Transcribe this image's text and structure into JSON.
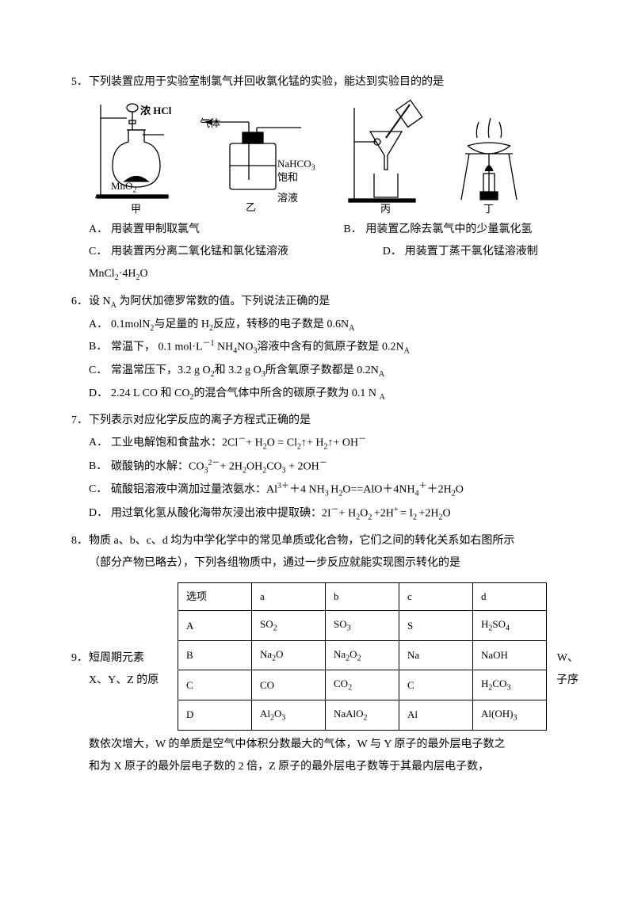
{
  "q5": {
    "num": "5．",
    "stem": "下列装置应用于实验室制氯气并回收氯化锰的实验，能达到实验目的的是",
    "labels": {
      "j1": "浓 HCl",
      "j2": "MnO",
      "j2s": "2",
      "j3": "气体",
      "j4": "NaHCO",
      "j4s": "3",
      "j5": "饱和溶液",
      "c1": "甲",
      "c2": "乙",
      "c3": "丙",
      "c4": "丁"
    },
    "A": {
      "l": "A．",
      "t": "用装置甲制取氯气"
    },
    "B": {
      "l": "B．",
      "t": "用装置乙除去氯气中的少量氯化氢"
    },
    "C": {
      "l": "C．",
      "t": "用装置丙分离二氧化锰和氯化锰溶液"
    },
    "D": {
      "l": "D．",
      "t": "用装置丁蒸干氯化锰溶液制"
    },
    "tail": "MnCl",
    "tail_s": "2",
    "tail2": "·4H",
    "tail2_s": "2",
    "tail3": "O"
  },
  "q6": {
    "num": "6．",
    "stem_a": "设 N",
    "stem_b": " 为阿伏加德罗常数的值。下列说法正确的是",
    "sub": "A",
    "A": {
      "l": "A．",
      "t1": "0.1molN",
      "s1": "2",
      "t2": "与足量的 H",
      "s2": "2",
      "t3": "反应，转移的电子数是 0.6N",
      "s3": "A"
    },
    "B": {
      "l": "B．",
      "t1": "常温下，  0.1 mol·L",
      "sup": "－1",
      "t2": " NH",
      "s2": "4",
      "t3": "NO",
      "s3": "3",
      "t4": "溶液中含有的氮原子数是 0.2N",
      "s4": "A"
    },
    "C": {
      "l": "C．",
      "t1": "常温常压下，3.2 g O",
      "s1": "2",
      "t2": "和 3.2 g O",
      "s2": "3",
      "t3": "所含氧原子数都是 0.2N",
      "s3": "A"
    },
    "D": {
      "l": "D．",
      "t1": "2.24 L CO 和 CO",
      "s1": "2",
      "t2": "的混合气体中所含的碳原子数为 0.1 N ",
      "s2": "A"
    }
  },
  "q7": {
    "num": "7．",
    "stem": "下列表示对应化学反应的离子方程式正确的是",
    "A": {
      "l": "A．",
      "t1": "工业电解饱和食盐水：2Cl",
      "sup1": "－",
      "t2": "+ H",
      "s2": "2",
      "t3": "O = Cl",
      "s3": "2",
      "t4": "↑+ H",
      "s4": "2",
      "t5": "↑+ OH",
      "sup5": "－"
    },
    "B": {
      "l": "B．",
      "t1": "碳酸钠的水解：CO",
      "s1": "3",
      "sup1": "2－",
      "t2": "+ 2H",
      "s2": "2",
      "t3": "OH",
      "s3": "2",
      "t4": "CO",
      "s4": "3",
      "t5": " + 2OH",
      "sup5": "－"
    },
    "C": {
      "l": "C．",
      "t1": "硫酸铝溶液中滴加过量浓氨水：Al",
      "sup1": "3＋",
      "t2": "＋4 NH",
      "s2": "3 ",
      "t3": "H",
      "s3": "2",
      "t4": "O==AlO＋4NH",
      "s4": "4",
      "sup4": "＋",
      "t5": "＋2H",
      "s5": "2",
      "t6": "O"
    },
    "D": {
      "l": "D．",
      "t1": "用过氧化氢从酸化海带灰浸出液中提取碘：2I",
      "sup1": "－",
      "t2": "+ H",
      "s2": "2",
      "t3": "O",
      "s3": "2 ",
      "t4": "+2H",
      "sup4": "+ ",
      "t5": "= I",
      "s5": "2 ",
      "t6": "+2H",
      "s6": "2",
      "t7": "O"
    }
  },
  "q8": {
    "num": "8．",
    "l1": "物质 a、b、c、d 均为中学化学中的常见单质或化合物，它们之间的转化关系如右图所示",
    "l2": "（部分产物已略去），下列各组物质中，通过一步反应就能实现图示转化的是",
    "table": {
      "h": [
        "选项",
        "a",
        "b",
        "c",
        "d"
      ],
      "r": [
        [
          "A",
          "SO<sub>2</sub>",
          "SO<sub>3</sub>",
          "S",
          "H<sub>2</sub>SO<sub>4</sub>"
        ],
        [
          "B",
          "Na<sub>2</sub>O",
          "Na<sub>2</sub>O<sub>2</sub>",
          "Na",
          "NaOH"
        ],
        [
          "C",
          "CO",
          "CO<sub>2</sub>",
          "C",
          "H<sub>2</sub>CO<sub>3</sub>"
        ],
        [
          "D",
          "Al<sub>2</sub>O<sub>3</sub>",
          "NaAlO<sub>2</sub>",
          "Al",
          "Al(OH)<sub>3</sub>"
        ]
      ]
    }
  },
  "q9": {
    "num": "9．",
    "left": "短周期元素",
    "right": "W、",
    "l2a": "X、Y、Z 的原",
    "l2b": "子序",
    "l3": "数依次增大，W 的单质是空气中体积分数最大的气体，W 与 Y 原子的最外层电子数之",
    "l4": "和为 X 原子的最外层电子数的 2 倍，Z 原子的最外层电子数等于其最内层电子数，"
  }
}
